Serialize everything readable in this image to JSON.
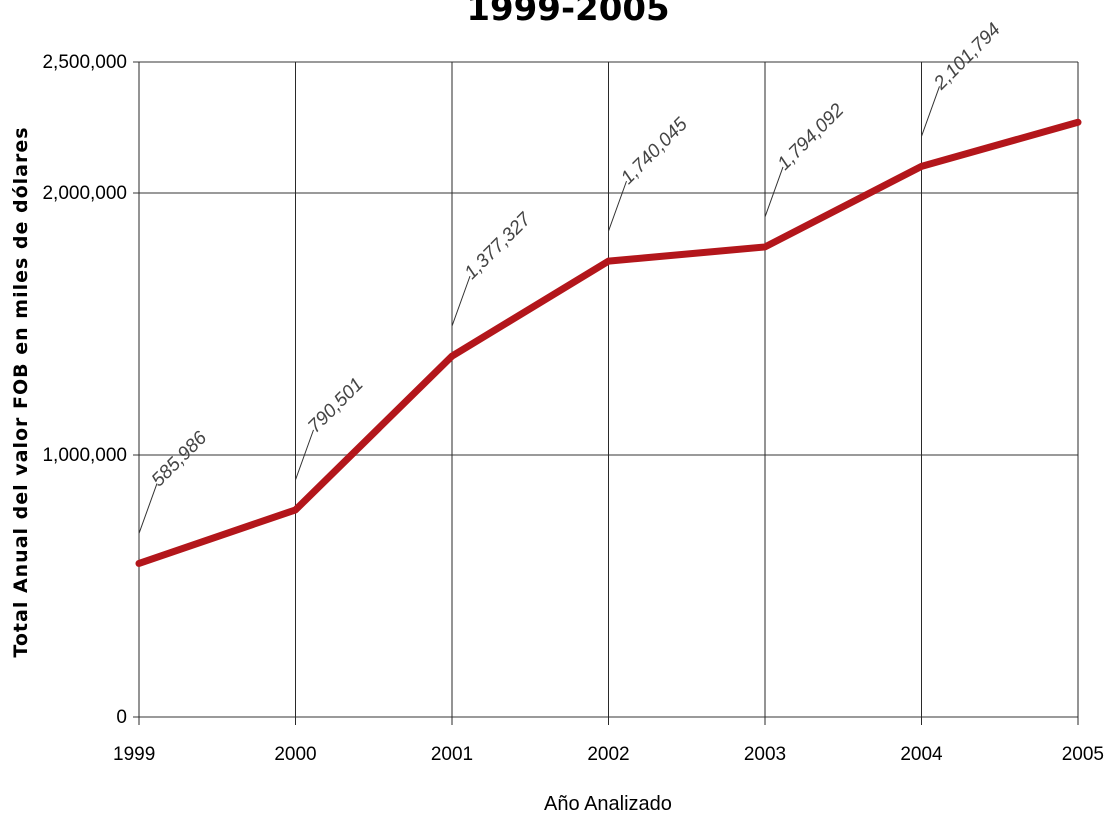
{
  "chart_data": {
    "type": "line",
    "title": "1999-2005",
    "xlabel": "Año Analizado",
    "ylabel": "Total Anual del valor FOB en miles de dólares",
    "x": [
      "1999",
      "2000",
      "2001",
      "2002",
      "2003",
      "2004",
      "2005"
    ],
    "ylim": [
      0,
      2500000
    ],
    "y_ticks": [
      0,
      1000000,
      2000000,
      2500000
    ],
    "y_tick_labels": [
      "0",
      "1,000,000",
      "2,000,000",
      "2,500,000"
    ],
    "grid": true,
    "series": [
      {
        "values": [
          585986,
          790501,
          1377327,
          1740045,
          1794092,
          2101794,
          2270000
        ],
        "data_labels": [
          "585,986",
          "790,501",
          "1,377,327",
          "1,740,045",
          "1,794,092",
          "2,101,794",
          ""
        ]
      }
    ],
    "colors": {
      "series": "#b3161b"
    }
  }
}
